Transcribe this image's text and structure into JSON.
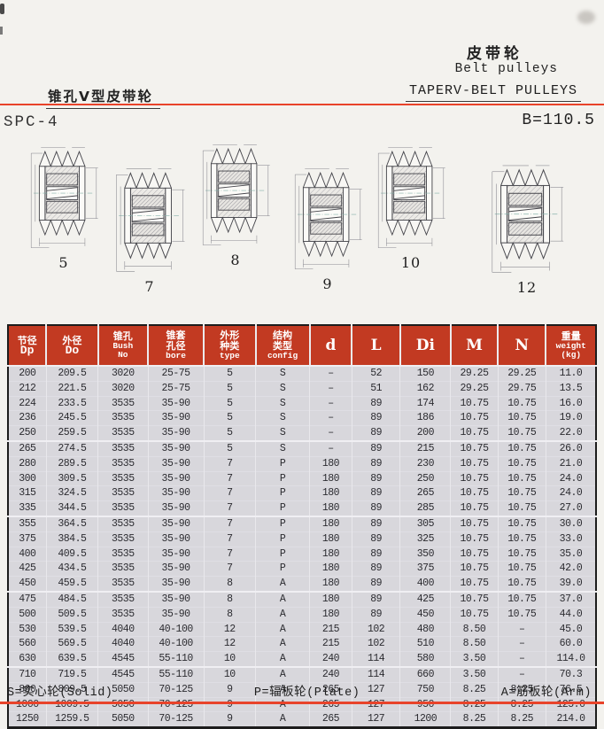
{
  "header": {
    "title_cn": "皮带轮",
    "title_en": "Belt pulleys",
    "subtitle_en": "TAPERV-BELT PULLEYS",
    "left_title": "锥孔V型皮带轮",
    "model": "SPC-4",
    "dimension": "B=110.5"
  },
  "figures": [
    {
      "label": "5"
    },
    {
      "label": "7"
    },
    {
      "label": "8"
    },
    {
      "label": "9"
    },
    {
      "label": "10"
    },
    {
      "label": "12"
    }
  ],
  "table": {
    "columns": [
      {
        "lines": [
          "节径",
          "Dp"
        ]
      },
      {
        "lines": [
          "外径",
          "Do"
        ]
      },
      {
        "lines": [
          "锥孔",
          "Bush",
          "No"
        ]
      },
      {
        "lines": [
          "锥套",
          "孔径",
          "bore"
        ]
      },
      {
        "lines": [
          "外形",
          "种类",
          "type"
        ]
      },
      {
        "lines": [
          "结构",
          "类型",
          "config"
        ]
      },
      {
        "lines": [
          "d"
        ]
      },
      {
        "lines": [
          "L"
        ]
      },
      {
        "lines": [
          "Di"
        ]
      },
      {
        "lines": [
          "M"
        ]
      },
      {
        "lines": [
          "N"
        ]
      },
      {
        "lines": [
          "重量",
          "weight",
          "(kg)"
        ]
      }
    ],
    "rows": [
      [
        "200",
        "209.5",
        "3020",
        "25-75",
        "5",
        "S",
        "–",
        "52",
        "150",
        "29.25",
        "29.25",
        "11.0"
      ],
      [
        "212",
        "221.5",
        "3020",
        "25-75",
        "5",
        "S",
        "–",
        "51",
        "162",
        "29.25",
        "29.75",
        "13.5"
      ],
      [
        "224",
        "233.5",
        "3535",
        "35-90",
        "5",
        "S",
        "–",
        "89",
        "174",
        "10.75",
        "10.75",
        "16.0"
      ],
      [
        "236",
        "245.5",
        "3535",
        "35-90",
        "5",
        "S",
        "–",
        "89",
        "186",
        "10.75",
        "10.75",
        "19.0"
      ],
      [
        "250",
        "259.5",
        "3535",
        "35-90",
        "5",
        "S",
        "–",
        "89",
        "200",
        "10.75",
        "10.75",
        "22.0"
      ],
      [
        "265",
        "274.5",
        "3535",
        "35-90",
        "5",
        "S",
        "–",
        "89",
        "215",
        "10.75",
        "10.75",
        "26.0"
      ],
      [
        "280",
        "289.5",
        "3535",
        "35-90",
        "7",
        "P",
        "180",
        "89",
        "230",
        "10.75",
        "10.75",
        "21.0"
      ],
      [
        "300",
        "309.5",
        "3535",
        "35-90",
        "7",
        "P",
        "180",
        "89",
        "250",
        "10.75",
        "10.75",
        "24.0"
      ],
      [
        "315",
        "324.5",
        "3535",
        "35-90",
        "7",
        "P",
        "180",
        "89",
        "265",
        "10.75",
        "10.75",
        "24.0"
      ],
      [
        "335",
        "344.5",
        "3535",
        "35-90",
        "7",
        "P",
        "180",
        "89",
        "285",
        "10.75",
        "10.75",
        "27.0"
      ],
      [
        "355",
        "364.5",
        "3535",
        "35-90",
        "7",
        "P",
        "180",
        "89",
        "305",
        "10.75",
        "10.75",
        "30.0"
      ],
      [
        "375",
        "384.5",
        "3535",
        "35-90",
        "7",
        "P",
        "180",
        "89",
        "325",
        "10.75",
        "10.75",
        "33.0"
      ],
      [
        "400",
        "409.5",
        "3535",
        "35-90",
        "7",
        "P",
        "180",
        "89",
        "350",
        "10.75",
        "10.75",
        "35.0"
      ],
      [
        "425",
        "434.5",
        "3535",
        "35-90",
        "7",
        "P",
        "180",
        "89",
        "375",
        "10.75",
        "10.75",
        "42.0"
      ],
      [
        "450",
        "459.5",
        "3535",
        "35-90",
        "8",
        "A",
        "180",
        "89",
        "400",
        "10.75",
        "10.75",
        "39.0"
      ],
      [
        "475",
        "484.5",
        "3535",
        "35-90",
        "8",
        "A",
        "180",
        "89",
        "425",
        "10.75",
        "10.75",
        "37.0"
      ],
      [
        "500",
        "509.5",
        "3535",
        "35-90",
        "8",
        "A",
        "180",
        "89",
        "450",
        "10.75",
        "10.75",
        "44.0"
      ],
      [
        "530",
        "539.5",
        "4040",
        "40-100",
        "12",
        "A",
        "215",
        "102",
        "480",
        "8.50",
        "–",
        "45.0"
      ],
      [
        "560",
        "569.5",
        "4040",
        "40-100",
        "12",
        "A",
        "215",
        "102",
        "510",
        "8.50",
        "–",
        "60.0"
      ],
      [
        "630",
        "639.5",
        "4545",
        "55-110",
        "10",
        "A",
        "240",
        "114",
        "580",
        "3.50",
        "–",
        "114.0"
      ],
      [
        "710",
        "719.5",
        "4545",
        "55-110",
        "10",
        "A",
        "240",
        "114",
        "660",
        "3.50",
        "–",
        "70.3"
      ],
      [
        "800",
        "809.5",
        "5050",
        "70-125",
        "9",
        "A",
        "265",
        "127",
        "750",
        "8.25",
        "8.25",
        "76.5"
      ],
      [
        "1000",
        "1009.5",
        "5050",
        "70-125",
        "9",
        "A",
        "265",
        "127",
        "950",
        "8.25",
        "8.25",
        "125.0"
      ],
      [
        "1250",
        "1259.5",
        "5050",
        "70-125",
        "9",
        "A",
        "265",
        "127",
        "1200",
        "8.25",
        "8.25",
        "214.0"
      ]
    ],
    "group_breaks": [
      4,
      9,
      14,
      19
    ]
  },
  "footer": {
    "legend": [
      "S=实心轮(Solid)",
      "P=辐板轮(Plate)",
      "A=筋板轮(Arm)"
    ]
  },
  "colors": {
    "header_red": "#c23a22",
    "rule_red": "#e8432a",
    "row_bg": "#d8d7dc",
    "page_bg": "#f3f2ee"
  }
}
